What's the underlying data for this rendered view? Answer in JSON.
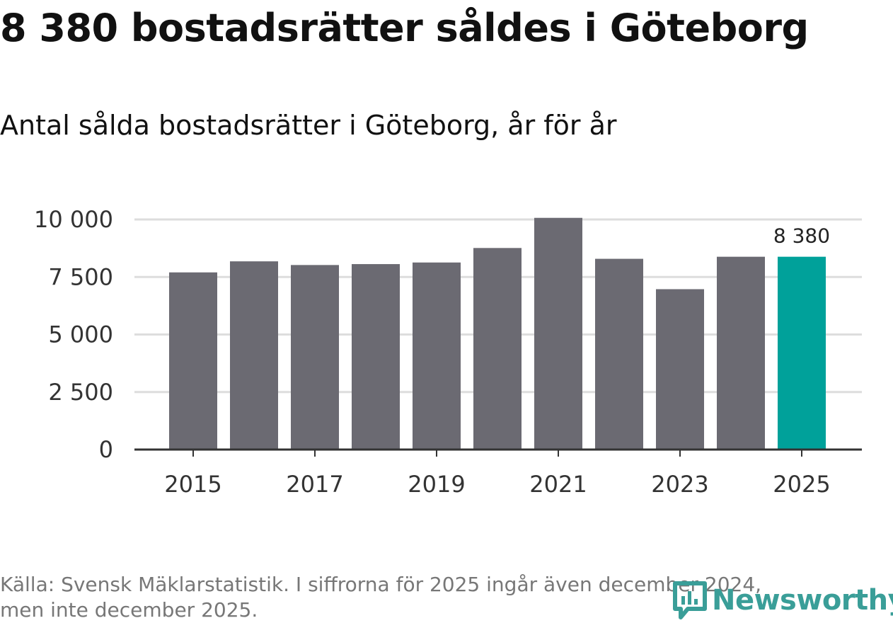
{
  "header": {
    "title": "8 380 bostadsrätter såldes i Göteborg",
    "subtitle": "Antal sålda bostadsrätter i Göteborg, år för år"
  },
  "chart_data": {
    "type": "bar",
    "title": "8 380 bostadsrätter såldes i Göteborg",
    "subtitle": "Antal sålda bostadsrätter i Göteborg, år för år",
    "categories": [
      "2015",
      "2016",
      "2017",
      "2018",
      "2019",
      "2020",
      "2021",
      "2022",
      "2023",
      "2024",
      "2025"
    ],
    "values": [
      7700,
      8180,
      8020,
      8060,
      8130,
      8760,
      10070,
      8290,
      6970,
      8380,
      8380
    ],
    "x_tick_labels": [
      "2015",
      "2017",
      "2019",
      "2021",
      "2023",
      "2025"
    ],
    "y_ticks": [
      0,
      2500,
      5000,
      7500,
      10000
    ],
    "y_tick_labels": [
      "0",
      "2 500",
      "5 000",
      "7 500",
      "10 000"
    ],
    "ylim": [
      0,
      10000
    ],
    "grid": true,
    "xlabel": "",
    "ylabel": "",
    "highlight_index": 10,
    "data_labels": [
      {
        "index": 10,
        "text": "8 380"
      }
    ],
    "colors": {
      "bar": "#6b6a72",
      "highlight": "#00a19a",
      "grid": "#dddddd",
      "axis": "#333333"
    }
  },
  "footer": {
    "source_line1": "Källa: Svensk Mäklarstatistik. I siffrorna för 2025 ingår även december 2024,",
    "source_line2": "men inte december 2025."
  },
  "brand": {
    "name": "Newsworthy",
    "icon": "newsworthy-logo-icon",
    "color": "#3a9e98"
  }
}
